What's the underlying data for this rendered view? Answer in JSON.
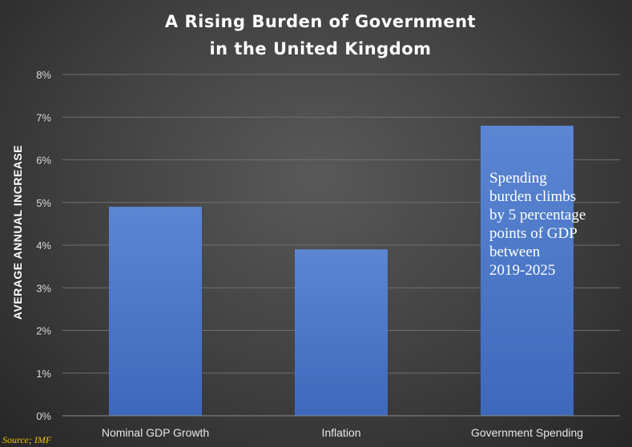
{
  "chart_data": {
    "type": "bar",
    "title": "A Rising Burden of Government in the United Kingdom",
    "title_lines": [
      "A Rising Burden of Government",
      "in the United Kingdom"
    ],
    "ylabel": "AVERAGE ANNUAL INCREASE",
    "xlabel": "",
    "categories": [
      "Nominal GDP Growth",
      "Inflation",
      "Government Spending"
    ],
    "values": [
      4.9,
      3.9,
      6.8
    ],
    "unit": "%",
    "ylim": [
      0,
      8
    ],
    "yticks": [
      0,
      1,
      2,
      3,
      4,
      5,
      6,
      7,
      8
    ],
    "ytick_labels": [
      "0%",
      "1%",
      "2%",
      "3%",
      "4%",
      "5%",
      "6%",
      "7%",
      "8%"
    ],
    "grid": true,
    "legend": "none",
    "bar_color": "#4472c4",
    "annotation": {
      "lines": [
        "Spending",
        "burden climbs",
        "by 5 percentage",
        "points of GDP",
        "between",
        "2019-2025"
      ]
    },
    "source": "Source; IMF"
  },
  "colors": {
    "background": "#404040",
    "bar": "#4472c4",
    "title": "#ffffff",
    "source": "#f2c200"
  }
}
